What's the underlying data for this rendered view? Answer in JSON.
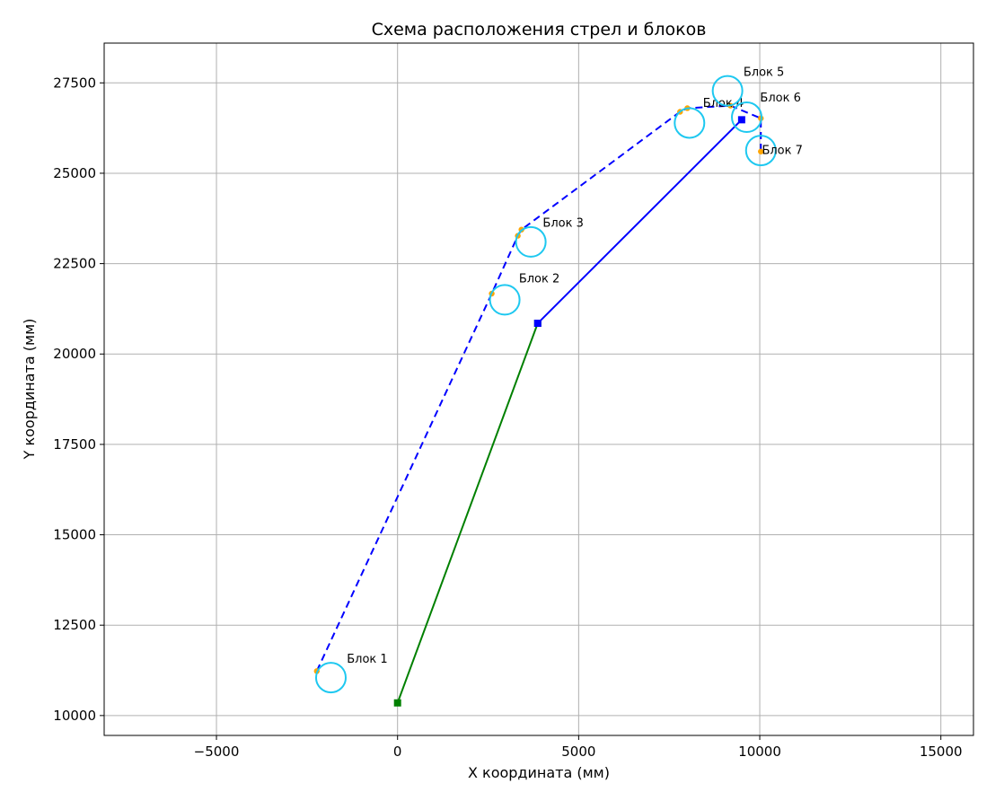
{
  "chart_data": {
    "type": "line",
    "title": "Схема расположения стрел и блоков",
    "xlabel": "X координата (мм)",
    "ylabel": "Y координата (мм)",
    "xlim": [
      -8100,
      15900
    ],
    "ylim": [
      9450,
      28600
    ],
    "xticks": [
      -5000,
      0,
      5000,
      10000,
      15000
    ],
    "yticks": [
      10000,
      12500,
      15000,
      17500,
      20000,
      22500,
      25000,
      27500
    ],
    "grid": true,
    "colors": {
      "boom_main": "#008000",
      "boom_jib": "#0000ff",
      "rope": "#0000ff",
      "block": "#1ec8f0",
      "contact_point": "#ffa500"
    },
    "series": [
      {
        "style": "solid",
        "color": "#008000",
        "marker": "square",
        "x": [
          0,
          3870
        ],
        "y": [
          10350,
          20850
        ]
      },
      {
        "style": "solid",
        "color": "#0000ff",
        "marker": "square",
        "x": [
          3870,
          9500
        ],
        "y": [
          20850,
          26480
        ]
      },
      {
        "style": "dashed",
        "color": "#0000ff",
        "marker": "none",
        "x": [
          -2230,
          2600,
          3320,
          3420,
          7800,
          8000,
          9190,
          10030,
          10030,
          10030
        ],
        "y": [
          11230,
          21670,
          23270,
          23440,
          26700,
          26800,
          26870,
          26520,
          25970,
          25600
        ]
      },
      {
        "style": "points",
        "color": "#ffa500",
        "marker": "circle",
        "x": [
          -2230,
          2600,
          3320,
          3420,
          7800,
          8000,
          9190,
          10030,
          10030
        ],
        "y": [
          11230,
          21670,
          23270,
          23440,
          26700,
          26800,
          26870,
          26520,
          25600
        ]
      }
    ],
    "blocks": [
      {
        "label": "Блок 1",
        "x": -1840,
        "y": 11050,
        "label_x": -1400,
        "label_y": 11560
      },
      {
        "label": "Блок 2",
        "x": 2960,
        "y": 21500,
        "label_x": 3350,
        "label_y": 22080
      },
      {
        "label": "Блок 3",
        "x": 3680,
        "y": 23100,
        "label_x": 4010,
        "label_y": 23620
      },
      {
        "label": "Блок 4",
        "x": 8060,
        "y": 26390,
        "label_x": 8430,
        "label_y": 26940
      },
      {
        "label": "Блок 5",
        "x": 9110,
        "y": 27280,
        "label_x": 9550,
        "label_y": 27790
      },
      {
        "label": "Блок 6",
        "x": 9640,
        "y": 26550,
        "label_x": 10010,
        "label_y": 27090
      },
      {
        "label": "Блок 7",
        "x": 10030,
        "y": 25630,
        "label_x": 10060,
        "label_y": 25630
      }
    ]
  }
}
